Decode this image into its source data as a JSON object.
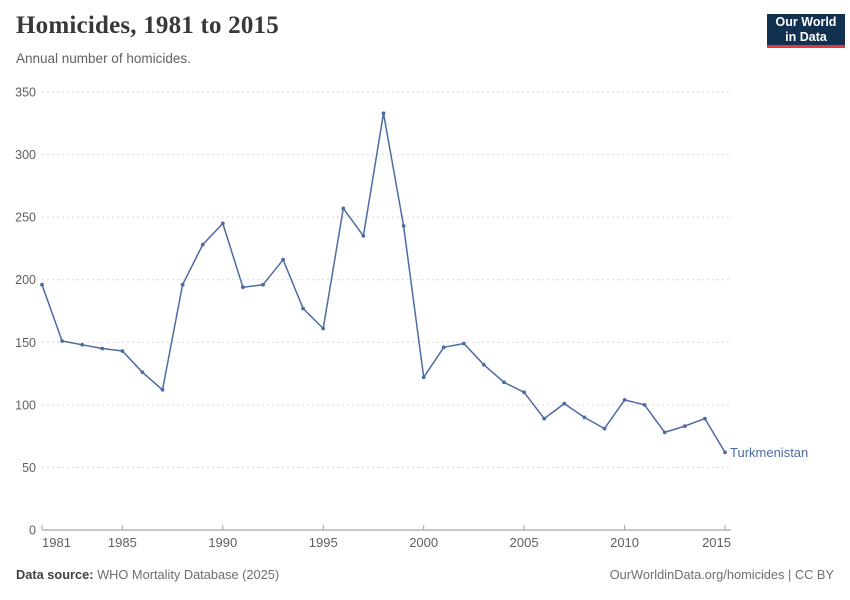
{
  "header": {
    "title": "Homicides, 1981 to 2015",
    "subtitle": "Annual number of homicides."
  },
  "logo": {
    "line1": "Our World",
    "line2": "in Data",
    "bg_color": "#12304f",
    "accent_color": "#e0393e"
  },
  "footer": {
    "source_label": "Data source:",
    "source_value": " WHO Mortality Database (2025)",
    "attribution": "OurWorldinData.org/homicides | CC BY"
  },
  "chart_data": {
    "type": "line",
    "title": "Homicides, 1981 to 2015",
    "subtitle": "Annual number of homicides.",
    "xlabel": "",
    "ylabel": "",
    "ylim": [
      0,
      350
    ],
    "yticks": [
      0,
      50,
      100,
      150,
      200,
      250,
      300,
      350
    ],
    "xticks": [
      1981,
      1985,
      1990,
      1995,
      2000,
      2005,
      2010,
      2015
    ],
    "grid": "horizontal-dashed",
    "legend_position": "end-of-line-label",
    "colors": {
      "gridline": "#d9d9d9",
      "axis": "#8f8f8f",
      "tick": "#a3a3a3",
      "tick_label": "#5f5f5f"
    },
    "series": [
      {
        "name": "Turkmenistan",
        "color": "#4c6ba3",
        "x": [
          1981,
          1982,
          1983,
          1984,
          1985,
          1986,
          1987,
          1988,
          1989,
          1990,
          1991,
          1992,
          1993,
          1994,
          1995,
          1996,
          1997,
          1998,
          1999,
          2000,
          2001,
          2002,
          2003,
          2004,
          2005,
          2006,
          2007,
          2008,
          2009,
          2010,
          2011,
          2012,
          2013,
          2014,
          2015
        ],
        "values": [
          196,
          151,
          148,
          145,
          143,
          126,
          112,
          196,
          228,
          245,
          194,
          196,
          216,
          177,
          161,
          257,
          235,
          333,
          243,
          122,
          146,
          149,
          132,
          118,
          110,
          89,
          101,
          90,
          81,
          104,
          100,
          78,
          83,
          89,
          62
        ]
      }
    ]
  }
}
